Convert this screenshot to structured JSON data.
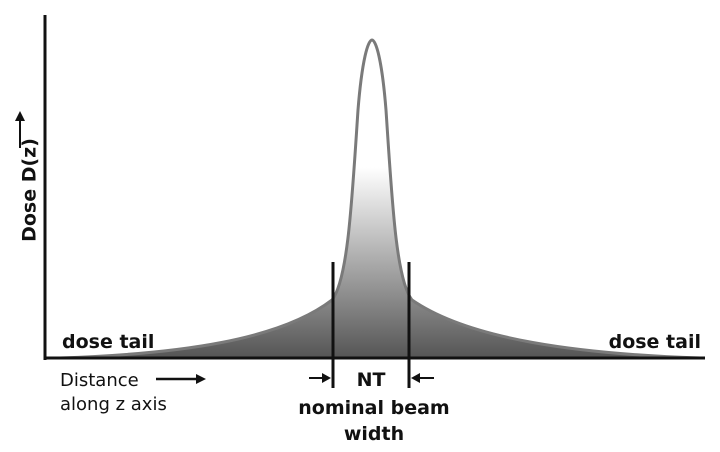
{
  "axes": {
    "y_label": "Dose D(z)",
    "x_label_line1": "Distance",
    "x_label_line2": "along z axis"
  },
  "annotations": {
    "left_tail": "dose tail",
    "right_tail": "dose tail",
    "beam_symbol": "NT",
    "beam_caption_line1": "nominal beam",
    "beam_caption_line2": "width"
  },
  "colors": {
    "axis": "#111111",
    "curve_stroke": "#7a7a7a",
    "fill_light": "#ffffff",
    "fill_dark": "#555555"
  },
  "icons": [
    "arrow-up-icon",
    "arrow-right-icon",
    "arrow-inward-icon"
  ]
}
